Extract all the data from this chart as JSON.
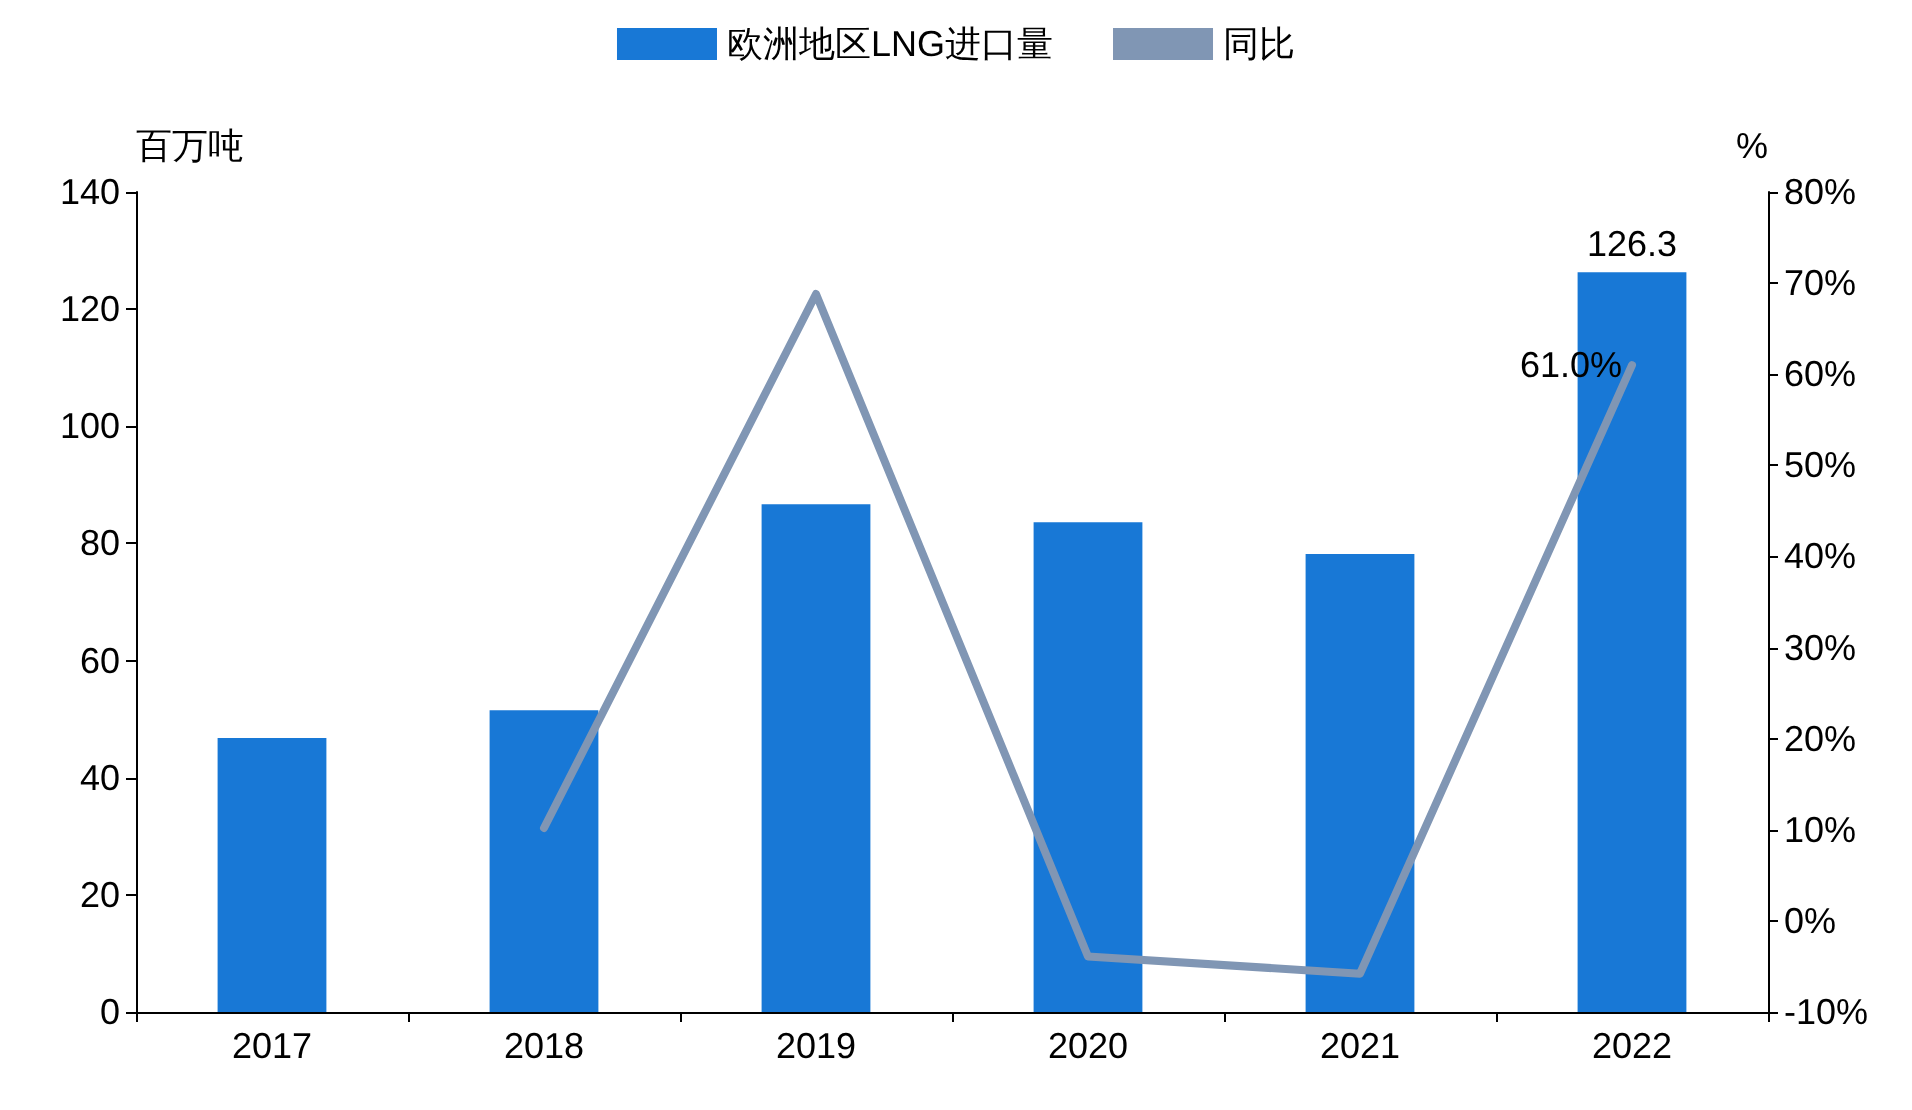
{
  "chart_data": {
    "type": "bar",
    "ylabel": "百万吨",
    "y2label": "%",
    "categories": [
      "2017",
      "2018",
      "2019",
      "2020",
      "2021",
      "2022"
    ],
    "series": [
      {
        "name": "欧洲地区LNG进口量",
        "type": "bar",
        "color": "#1878d6",
        "values": [
          46.8,
          51.5,
          86.7,
          83.6,
          78.2,
          126.3
        ],
        "value_labels": [
          null,
          null,
          null,
          null,
          null,
          "126.3"
        ]
      },
      {
        "name": "同比",
        "type": "line",
        "axis": "y2",
        "color": "#8096b4",
        "values": [
          null,
          10.2,
          68.8,
          -3.9,
          -5.8,
          61.0
        ],
        "value_labels": [
          null,
          null,
          null,
          null,
          null,
          "61.0%"
        ]
      }
    ],
    "ylim": [
      0,
      140
    ],
    "yticks": [
      0,
      20,
      40,
      60,
      80,
      100,
      120,
      140
    ],
    "y2lim": [
      -10,
      80
    ],
    "y2ticks": [
      {
        "value": -10,
        "label": "-10%"
      },
      {
        "value": 0,
        "label": "0%"
      },
      {
        "value": 10,
        "label": "10%"
      },
      {
        "value": 20,
        "label": "20%"
      },
      {
        "value": 30,
        "label": "30%"
      },
      {
        "value": 40,
        "label": "40%"
      },
      {
        "value": 50,
        "label": "50%"
      },
      {
        "value": 60,
        "label": "60%"
      },
      {
        "value": 70,
        "label": "70%"
      },
      {
        "value": 80,
        "label": "80%"
      }
    ],
    "grid": false,
    "legend": "top",
    "marker": "none",
    "line_style": "solid"
  }
}
